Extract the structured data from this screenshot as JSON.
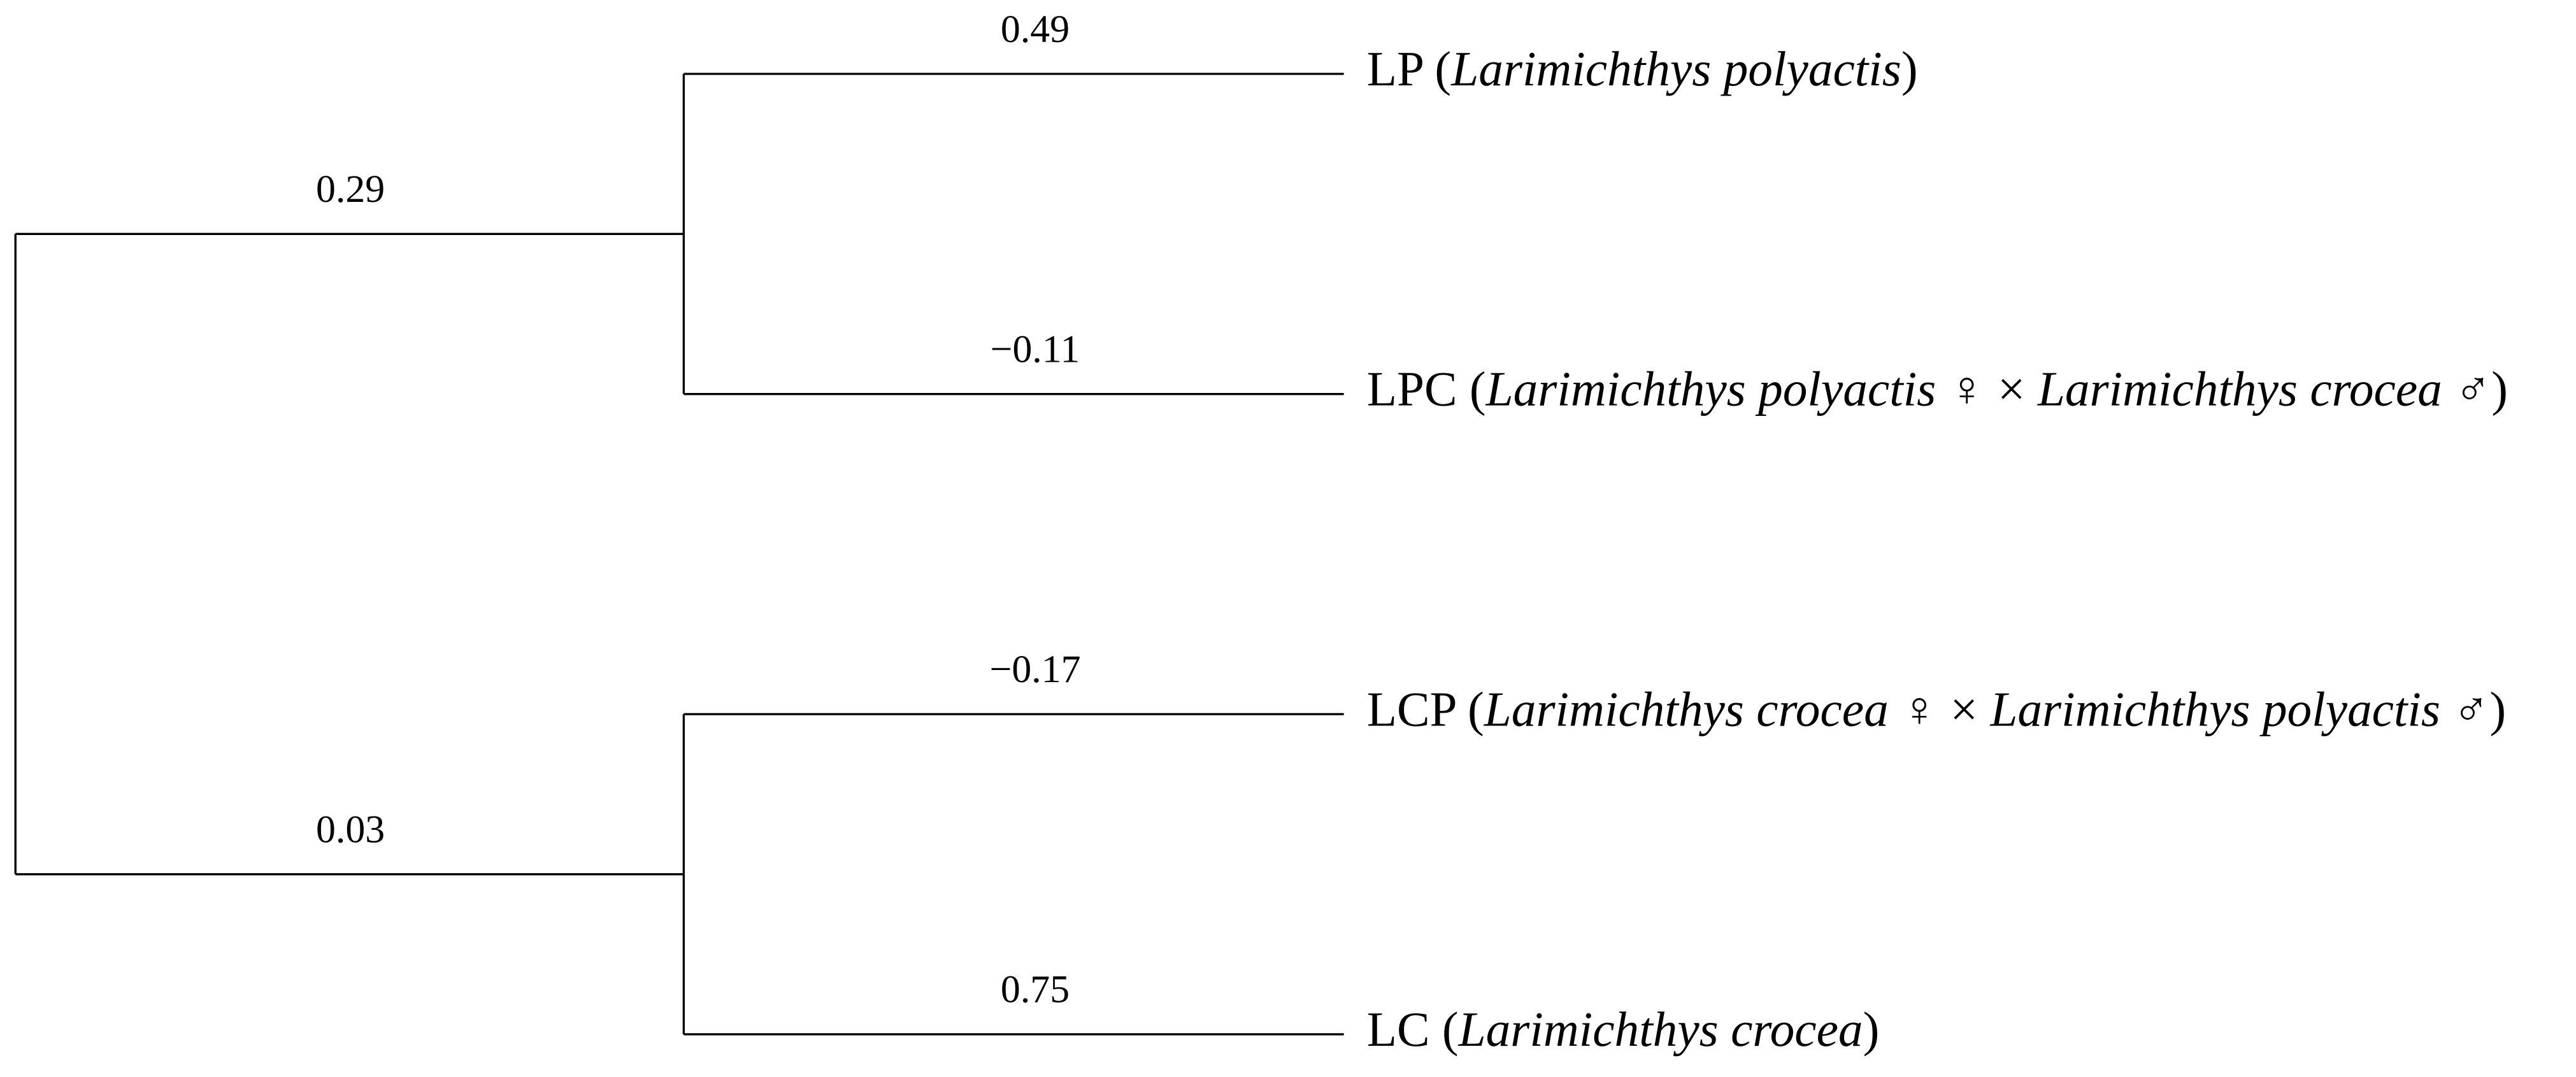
{
  "tree": {
    "clades": [
      {
        "branch_label": "0.29",
        "leaves": [
          {
            "branch_label": "0.49",
            "label": [
              {
                "text": "LP (",
                "italic": false
              },
              {
                "text": "Larimichthys polyactis",
                "italic": true
              },
              {
                "text": ")",
                "italic": false
              }
            ]
          },
          {
            "branch_label": "−0.11",
            "label": [
              {
                "text": "LPC (",
                "italic": false
              },
              {
                "text": "Larimichthys polyactis",
                "italic": true
              },
              {
                "text": " ♀ × ",
                "italic": false
              },
              {
                "text": "Larimichthys crocea",
                "italic": true
              },
              {
                "text": " ♂)",
                "italic": false
              }
            ]
          }
        ]
      },
      {
        "branch_label": "0.03",
        "leaves": [
          {
            "branch_label": "−0.17",
            "label": [
              {
                "text": "LCP (",
                "italic": false
              },
              {
                "text": "Larimichthys crocea",
                "italic": true
              },
              {
                "text": " ♀ × ",
                "italic": false
              },
              {
                "text": "Larimichthys polyactis",
                "italic": true
              },
              {
                "text": " ♂)",
                "italic": false
              }
            ]
          },
          {
            "branch_label": "0.75",
            "label": [
              {
                "text": "LC (",
                "italic": false
              },
              {
                "text": "Larimichthys crocea",
                "italic": true
              },
              {
                "text": ")",
                "italic": false
              }
            ]
          }
        ]
      }
    ]
  }
}
